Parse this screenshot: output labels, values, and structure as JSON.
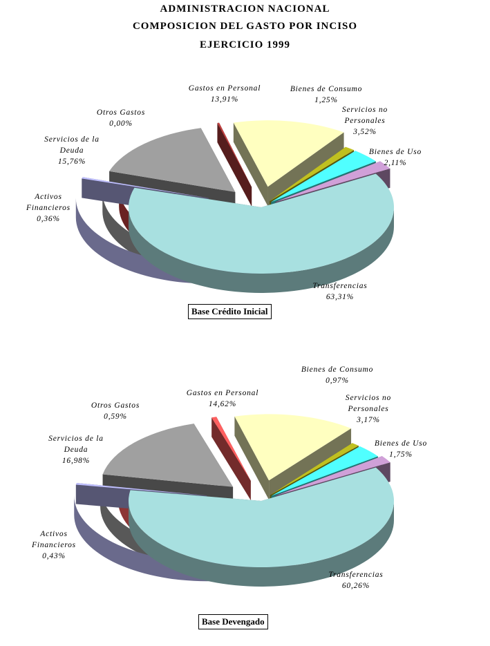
{
  "header": {
    "line1": "ADMINISTRACION NACIONAL",
    "line2": "COMPOSICION DEL GASTO POR INCISO",
    "line3": "EJERCICIO 1999"
  },
  "chart_data": [
    {
      "type": "pie",
      "title": "Base Crédito Inicial",
      "exploded": true,
      "three_d": true,
      "slices": [
        {
          "name": "Gastos en Personal",
          "value": 13.91,
          "label": "13,91%",
          "color": "#ffffc0"
        },
        {
          "name": "Bienes de Consumo",
          "value": 1.25,
          "label": "1,25%",
          "color": "#c0c020"
        },
        {
          "name": "Servicios no Personales",
          "value": 3.52,
          "label": "3,52%",
          "color": "#50ffff"
        },
        {
          "name": "Bienes de Uso",
          "value": 2.11,
          "label": "2,11%",
          "color": "#d0a0d8"
        },
        {
          "name": "Transferencias",
          "value": 63.31,
          "label": "63,31%",
          "color": "#a8e0e0"
        },
        {
          "name": "Activos Financieros",
          "value": 0.36,
          "label": "0,36%",
          "color": "#c0c0ff"
        },
        {
          "name": "Servicios de la Deuda",
          "value": 15.76,
          "label": "15,76%",
          "color": "#a0a0a0"
        },
        {
          "name": "Otros Gastos",
          "value": 0.0,
          "label": "0,00%",
          "color": "#c04040"
        }
      ]
    },
    {
      "type": "pie",
      "title": "Base Devengado",
      "exploded": true,
      "three_d": true,
      "slices": [
        {
          "name": "Gastos en Personal",
          "value": 14.62,
          "label": "14,62%",
          "color": "#ffffc0"
        },
        {
          "name": "Bienes de Consumo",
          "value": 0.97,
          "label": "0,97%",
          "color": "#c0c020"
        },
        {
          "name": "Servicios no Personales",
          "value": 3.17,
          "label": "3,17%",
          "color": "#50ffff"
        },
        {
          "name": "Bienes de Uso",
          "value": 1.75,
          "label": "1,75%",
          "color": "#d0a0d8"
        },
        {
          "name": "Transferencias",
          "value": 60.26,
          "label": "60,26%",
          "color": "#a8e0e0"
        },
        {
          "name": "Activos Financieros",
          "value": 0.43,
          "label": "0,43%",
          "color": "#c0c0ff"
        },
        {
          "name": "Servicios de la Deuda",
          "value": 16.98,
          "label": "16,98%",
          "color": "#a0a0a0"
        },
        {
          "name": "Otros Gastos",
          "value": 0.59,
          "label": "0,59%",
          "color": "#ff6060"
        }
      ]
    }
  ]
}
